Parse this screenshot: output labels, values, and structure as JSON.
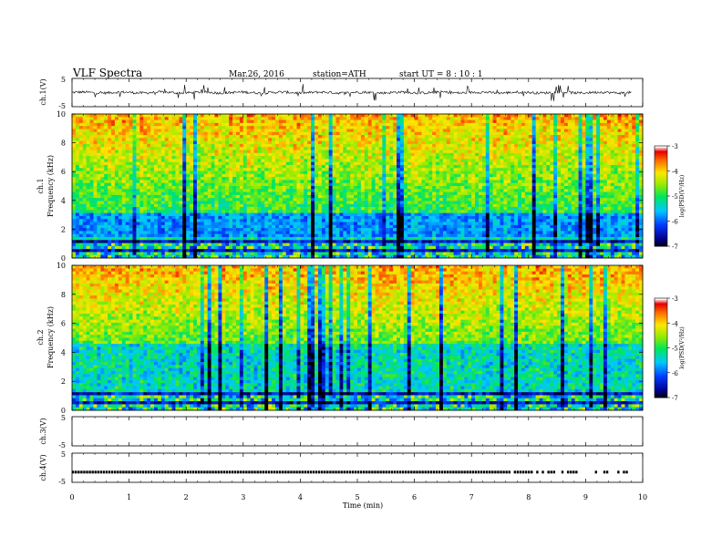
{
  "header": {
    "title": "VLF  Spectra",
    "date": "Mar.26, 2016",
    "station": "station=ATH",
    "start": "start  UT  =   8 : 10 : 1"
  },
  "chart_data": [
    {
      "type": "line",
      "panel": "ch1",
      "ylabel": "ch.1(V)",
      "yticks": [
        "5",
        "-5"
      ],
      "ylim": [
        -5,
        5
      ],
      "x_unit": "min",
      "xlim": [
        0,
        10
      ],
      "series": [
        {
          "description_values": "noisy trace around 0 V with occasional spikes between about -3 and +3 V, ending near 9.8 min",
          "baseline": 0
        }
      ]
    },
    {
      "type": "heatmap",
      "panel": "ch1-spectrogram",
      "ylabel_channel": "ch.1",
      "ylabel": "Frequency  (kHz)",
      "yticks": [
        "0",
        "2",
        "4",
        "6",
        "8",
        "10"
      ],
      "ylim": [
        0,
        10
      ],
      "xlim": [
        0,
        10
      ],
      "colorbar": {
        "label": "log(PSD(V²/Hz)",
        "ticks": [
          "-3",
          "-4",
          "-5",
          "-6",
          "-7"
        ],
        "range": [
          -7,
          -3
        ]
      }
    },
    {
      "type": "heatmap",
      "panel": "ch2-spectrogram",
      "ylabel_channel": "ch.2",
      "ylabel": "Frequency  (kHz)",
      "yticks": [
        "0",
        "2",
        "4",
        "6",
        "8",
        "10"
      ],
      "ylim": [
        0,
        10
      ],
      "xlim": [
        0,
        10
      ],
      "colorbar": {
        "label": "log(PSD(V²/Hz)",
        "ticks": [
          "-3",
          "-4",
          "-5",
          "-6",
          "-7"
        ],
        "range": [
          -7,
          -3
        ]
      }
    },
    {
      "type": "line",
      "panel": "ch3",
      "ylabel": "ch.3(V)",
      "yticks": [
        "5",
        "-5"
      ],
      "ylim": [
        -5,
        5
      ]
    },
    {
      "type": "line",
      "panel": "ch4",
      "ylabel": "ch.4(V)",
      "yticks": [
        "5",
        "-5"
      ],
      "ylim": [
        -5,
        5
      ],
      "series": [
        {
          "value": -1.5,
          "x_end": 9.8
        }
      ]
    }
  ],
  "xaxis": {
    "label": "Time  (min)",
    "ticks": [
      "0",
      "1",
      "2",
      "3",
      "4",
      "5",
      "6",
      "7",
      "8",
      "9",
      "10"
    ]
  }
}
